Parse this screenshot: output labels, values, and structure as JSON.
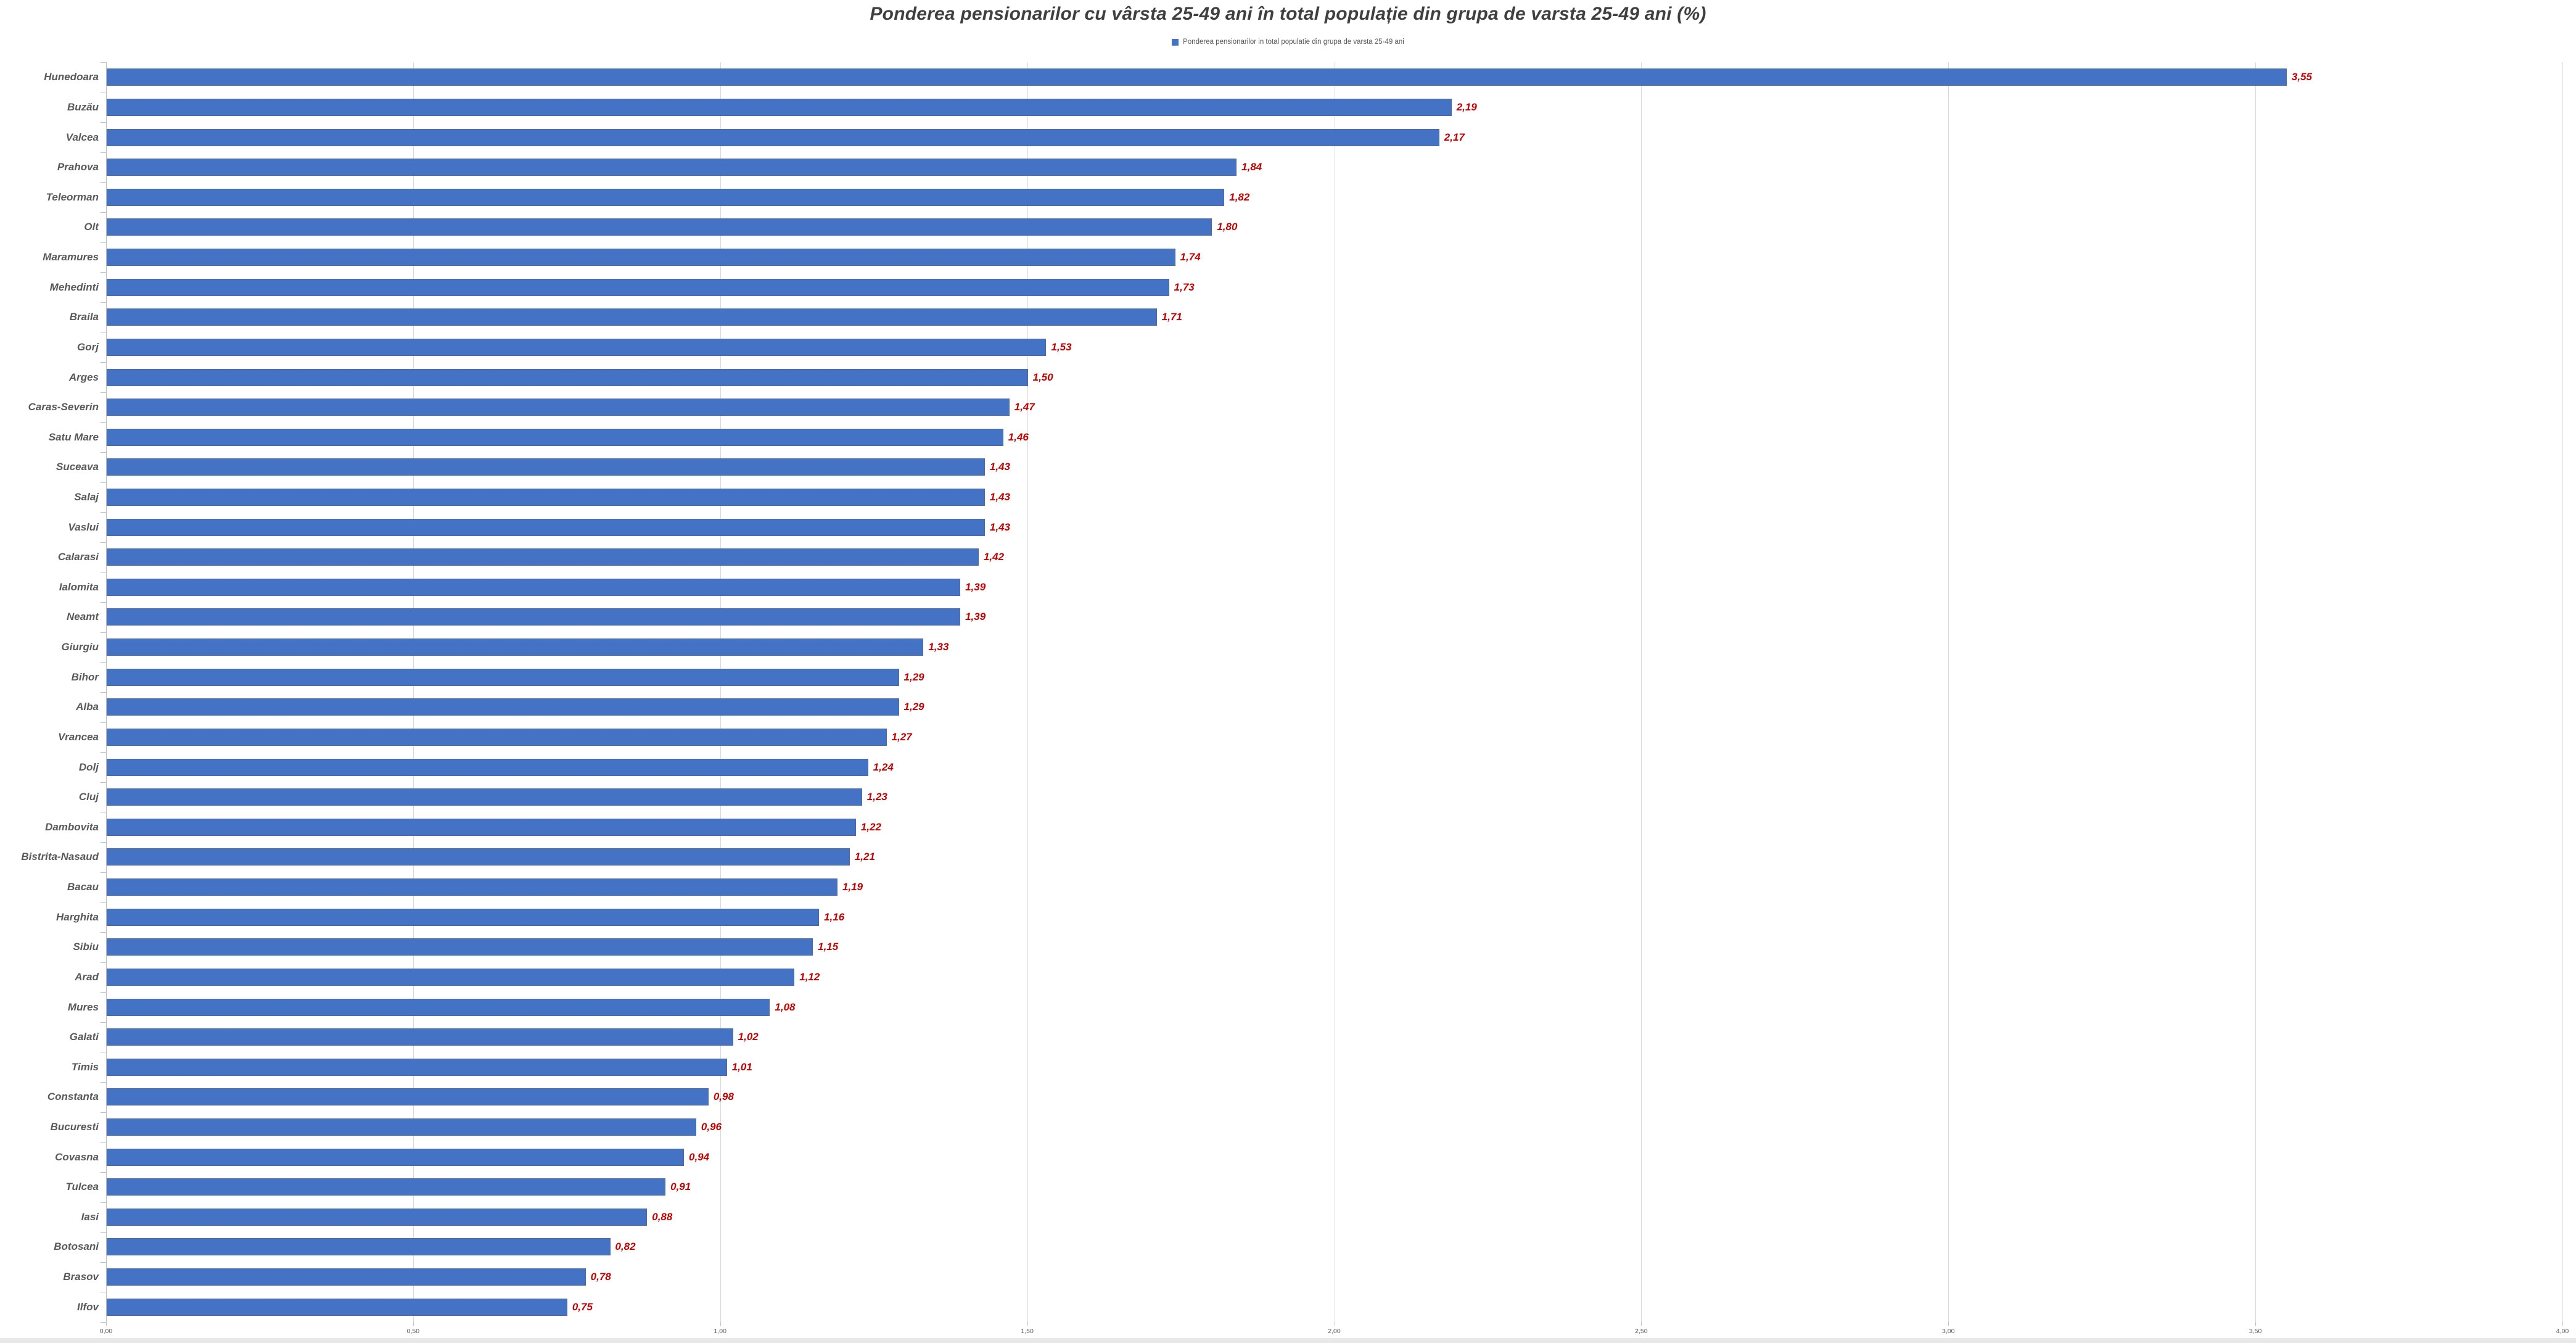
{
  "chart_data": {
    "type": "bar",
    "orientation": "horizontal",
    "title": "Ponderea pensionarilor cu vârsta 25-49 ani în total populație din grupa de varsta 25-49 ani (%)",
    "legend_label": "Ponderea pensionarilor in total populatie din grupa de varsta 25-49 ani",
    "legend_position": "top",
    "grid": "vertical",
    "xlim": [
      0,
      4
    ],
    "categories": [
      "Hunedoara",
      "Buzău",
      "Valcea",
      "Prahova",
      "Teleorman",
      "Olt",
      "Maramures",
      "Mehedinti",
      "Braila",
      "Gorj",
      "Arges",
      "Caras-Severin",
      "Satu Mare",
      "Suceava",
      "Salaj",
      "Vaslui",
      "Calarasi",
      "Ialomita",
      "Neamt",
      "Giurgiu",
      "Bihor",
      "Alba",
      "Vrancea",
      "Dolj",
      "Cluj",
      "Dambovita",
      "Bistrita-Nasaud",
      "Bacau",
      "Harghita",
      "Sibiu",
      "Arad",
      "Mures",
      "Galati",
      "Timis",
      "Constanta",
      "Bucuresti",
      "Covasna",
      "Tulcea",
      "Iasi",
      "Botosani",
      "Brasov",
      "Ilfov"
    ],
    "values": [
      3.55,
      2.19,
      2.17,
      1.84,
      1.82,
      1.8,
      1.74,
      1.73,
      1.71,
      1.53,
      1.5,
      1.47,
      1.46,
      1.43,
      1.43,
      1.43,
      1.42,
      1.39,
      1.39,
      1.33,
      1.29,
      1.29,
      1.27,
      1.24,
      1.23,
      1.22,
      1.21,
      1.19,
      1.16,
      1.15,
      1.12,
      1.08,
      1.02,
      1.01,
      0.98,
      0.96,
      0.94,
      0.91,
      0.88,
      0.82,
      0.78,
      0.75
    ],
    "data_labels": [
      "3,55",
      "2,19",
      "2,17",
      "1,84",
      "1,82",
      "1,80",
      "1,74",
      "1,73",
      "1,71",
      "1,53",
      "1,50",
      "1,47",
      "1,46",
      "1,43",
      "1,43",
      "1,43",
      "1,42",
      "1,39",
      "1,39",
      "1,33",
      "1,29",
      "1,29",
      "1,27",
      "1,24",
      "1,23",
      "1,22",
      "1,21",
      "1,19",
      "1,16",
      "1,15",
      "1,12",
      "1,08",
      "1,02",
      "1,01",
      "0,98",
      "0,96",
      "0,94",
      "0,91",
      "0,88",
      "0,82",
      "0,78",
      "0,75"
    ],
    "x_ticks": [
      {
        "label": "0,00",
        "value": 0
      },
      {
        "label": "0,50",
        "value": 0.5
      },
      {
        "label": "1,00",
        "value": 1
      },
      {
        "label": "1,50",
        "value": 1.5
      },
      {
        "label": "2,00",
        "value": 2
      },
      {
        "label": "2,50",
        "value": 2.5
      },
      {
        "label": "3,00",
        "value": 3
      },
      {
        "label": "3,50",
        "value": 3.5
      },
      {
        "label": "4,00",
        "value": 4
      }
    ]
  },
  "colors": {
    "bar": "#4472C4",
    "value_label": "#C00000",
    "category_label": "#595959",
    "title": "#3f3f3f",
    "gridline": "#d9d9d9",
    "axis": "#bfbfbf"
  }
}
